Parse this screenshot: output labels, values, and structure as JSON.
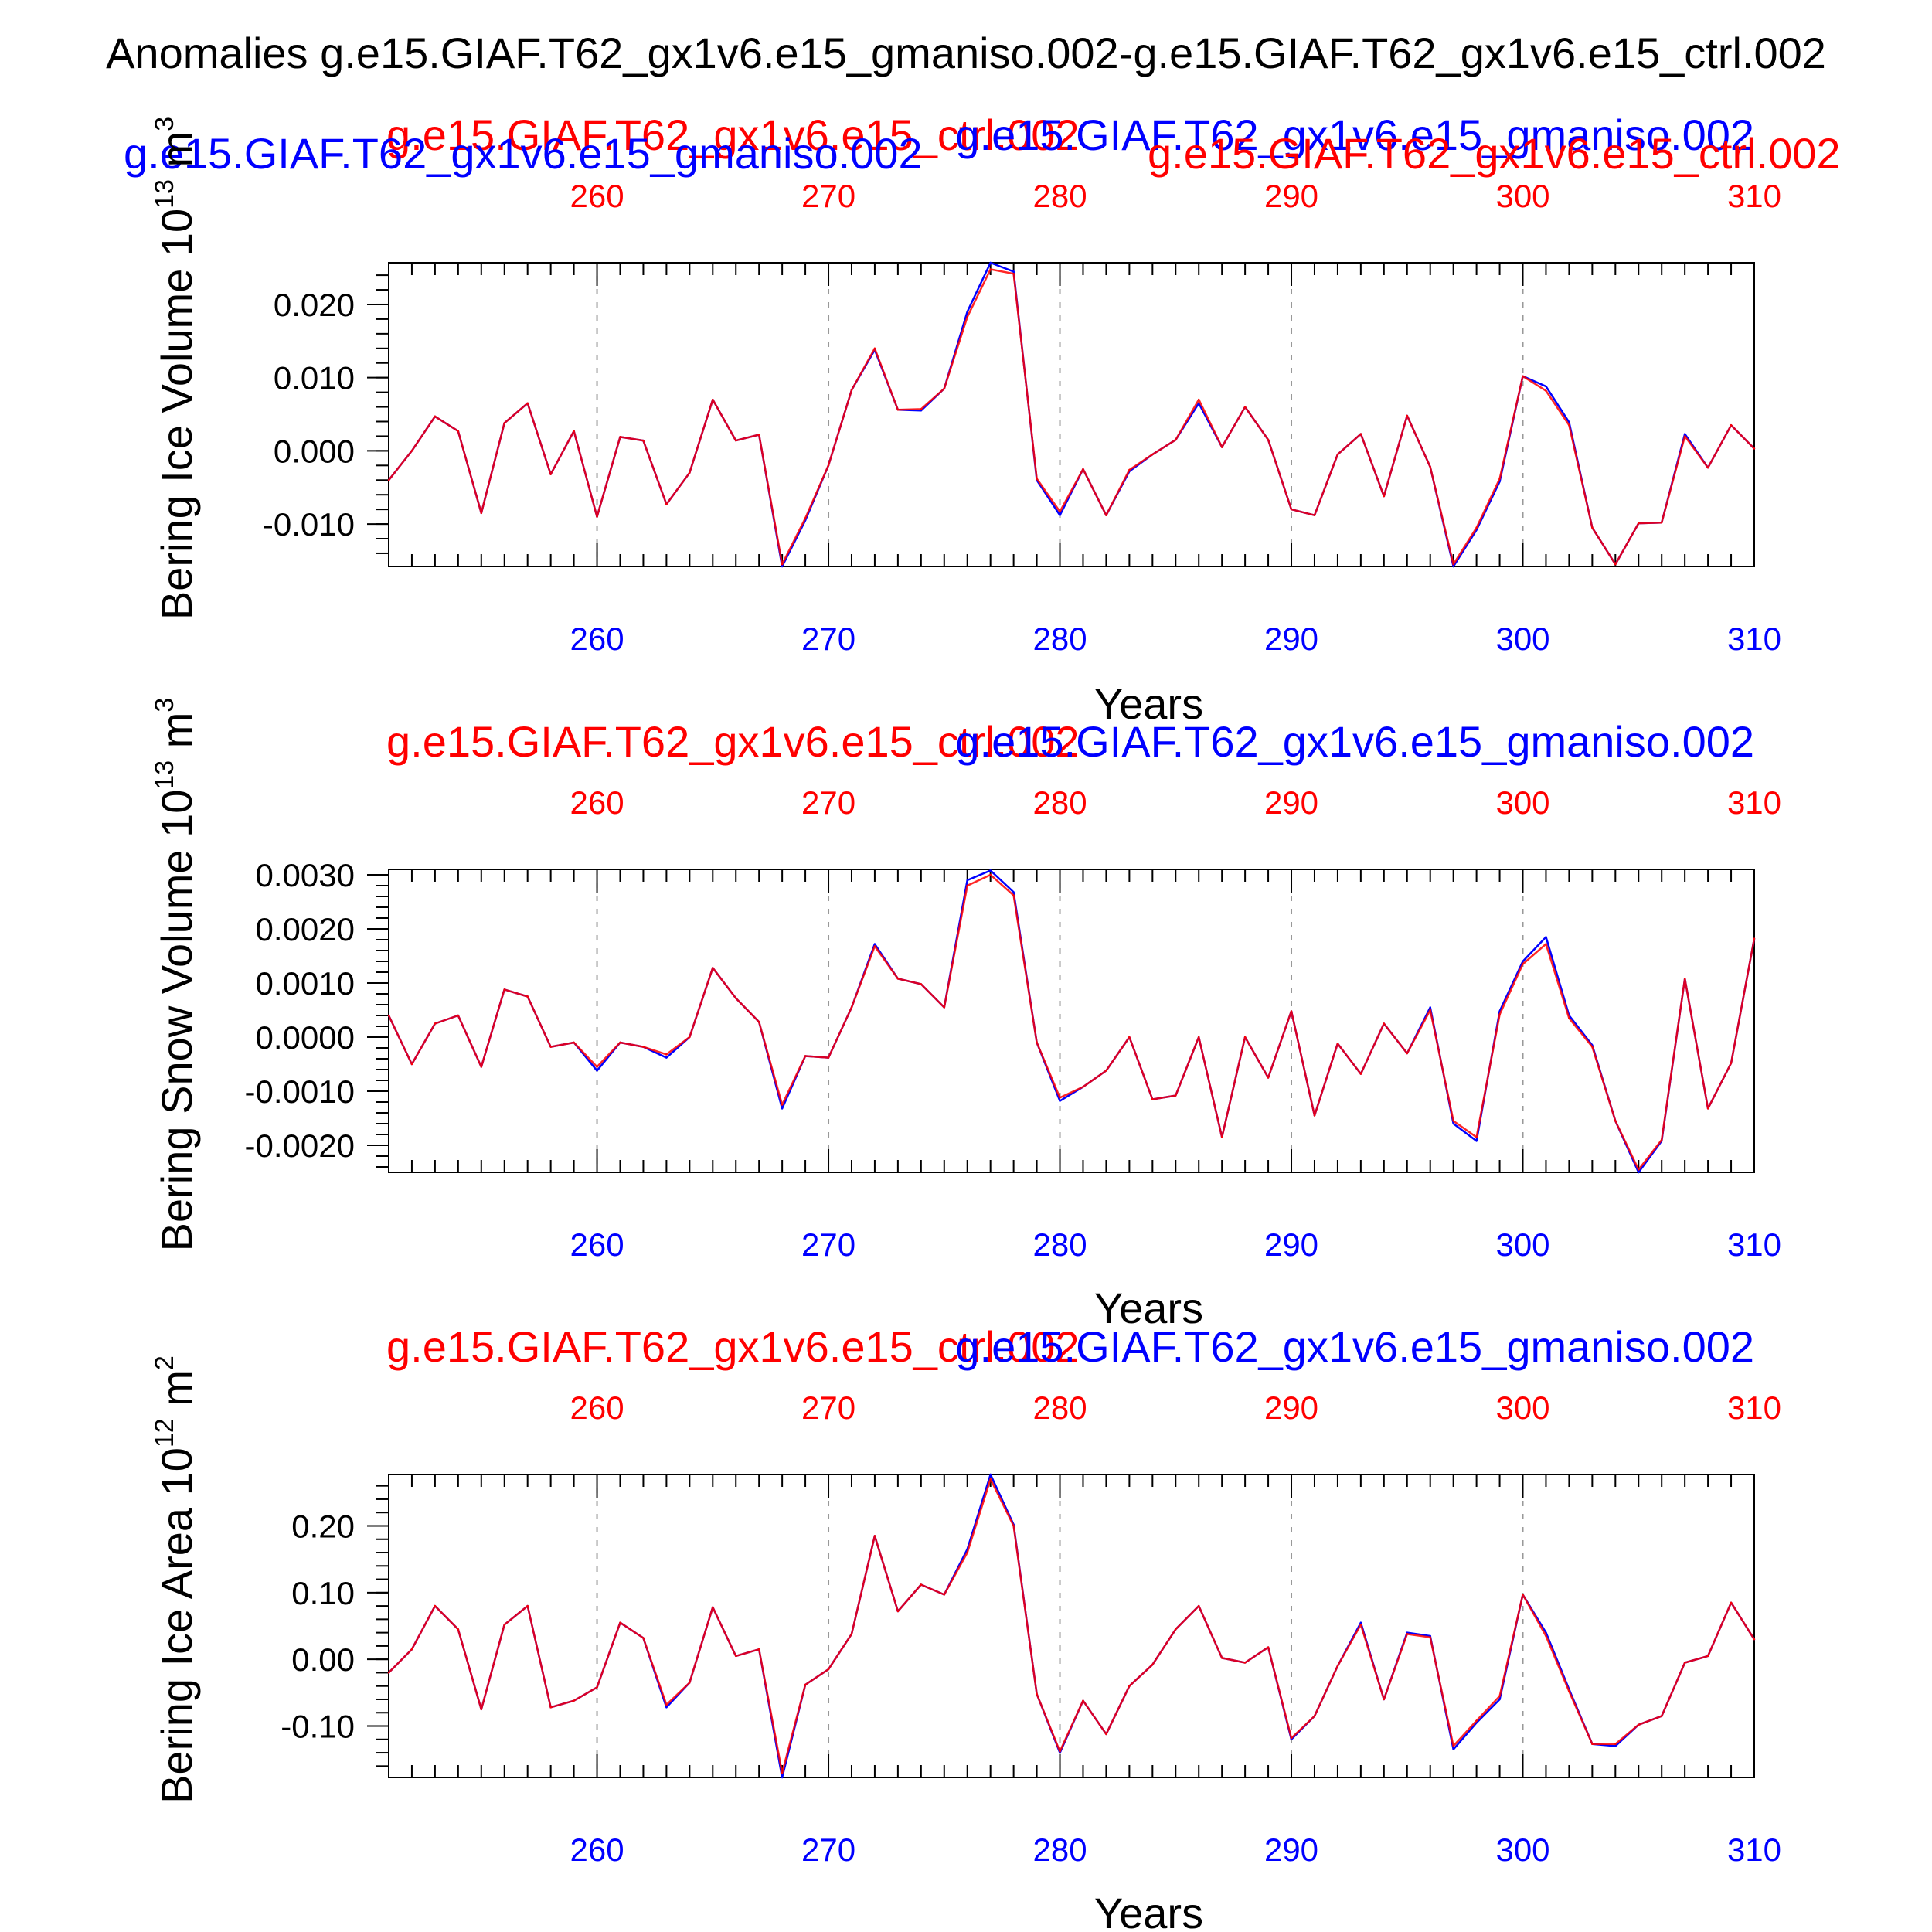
{
  "figure": {
    "main_title": "Anomalies g.e15.GIAF.T62_gx1v6.e15_gmaniso.002-g.e15.GIAF.T62_gx1v6.e15_ctrl.002",
    "colors": {
      "blue": "#0000ff",
      "red": "#ff0000",
      "purple": "#7f007f",
      "black": "#000000",
      "grid": "#999999"
    }
  },
  "chart_data": [
    {
      "type": "line",
      "top_labels": [
        "g.e15.GIAF.T62_gx1v6.e15_ctrl.002",
        "g.e15.GIAF.T62_gx1v6.e15_gmaniso.002"
      ],
      "overlay_labels": [
        "g.e15.GIAF.T62_gx1v6.e15_gmaniso.002",
        "g.e15.GIAF.T62_gx1v6.e15_ctrl.002"
      ],
      "ylabel_main": "Bering Ice Volume 10",
      "ylabel_exp": "13",
      "ylabel_unit": "m",
      "ylabel_unit_exp": "3",
      "xlabel": "Years",
      "xlim": [
        251,
        310
      ],
      "ylim": [
        -0.0158,
        0.0257
      ],
      "xticks": [
        260,
        270,
        280,
        290,
        300,
        310
      ],
      "xtick_labels": [
        "260",
        "270",
        "280",
        "290",
        "300",
        "310"
      ],
      "yticks": [
        -0.01,
        0.0,
        0.01,
        0.02
      ],
      "ytick_labels": [
        "-0.010",
        "0.000",
        "0.010",
        "0.020"
      ],
      "minor_y_step": 0.002,
      "x": [
        251,
        252,
        253,
        254,
        255,
        256,
        257,
        258,
        259,
        260,
        261,
        262,
        263,
        264,
        265,
        266,
        267,
        268,
        269,
        270,
        271,
        272,
        273,
        274,
        275,
        276,
        277,
        278,
        279,
        280,
        281,
        282,
        283,
        284,
        285,
        286,
        287,
        288,
        289,
        290,
        291,
        292,
        293,
        294,
        295,
        296,
        297,
        298,
        299,
        300,
        301,
        302,
        303,
        304,
        305,
        306,
        307,
        308,
        309,
        310
      ],
      "series": [
        {
          "color": "#0000ff",
          "values": [
            -0.004,
            0.0,
            0.0047,
            0.0027,
            -0.0085,
            0.0038,
            0.0065,
            -0.0032,
            0.0027,
            -0.009,
            0.0019,
            0.0014,
            -0.0073,
            -0.003,
            0.007,
            0.0014,
            0.0022,
            -0.0158,
            -0.0095,
            -0.002,
            0.0083,
            0.0138,
            0.0056,
            0.0055,
            0.0085,
            0.019,
            0.0257,
            0.0245,
            -0.004,
            -0.0088,
            -0.0025,
            -0.0088,
            -0.0028,
            -0.0005,
            0.0015,
            0.0065,
            0.0005,
            0.006,
            0.0015,
            -0.008,
            -0.0088,
            -0.0005,
            0.0023,
            -0.0062,
            0.0048,
            -0.0022,
            -0.0158,
            -0.0108,
            -0.0042,
            0.0102,
            0.0088,
            0.0039,
            -0.0105,
            -0.0155,
            -0.0099,
            -0.0098,
            0.0023,
            -0.0023,
            0.0035,
            0.0003
          ]
        },
        {
          "color": "#ff0000",
          "values": [
            -0.004,
            0.0,
            0.0047,
            0.0027,
            -0.0085,
            0.0038,
            0.0065,
            -0.0032,
            0.0027,
            -0.009,
            0.0019,
            0.0014,
            -0.0073,
            -0.003,
            0.007,
            0.0014,
            0.0022,
            -0.0155,
            -0.0092,
            -0.002,
            0.0083,
            0.014,
            0.0056,
            0.0057,
            0.0085,
            0.0183,
            0.0248,
            0.0242,
            -0.0038,
            -0.0083,
            -0.0025,
            -0.0088,
            -0.0026,
            -0.0005,
            0.0015,
            0.007,
            0.0005,
            0.006,
            0.0015,
            -0.008,
            -0.0088,
            -0.0005,
            0.0023,
            -0.0062,
            0.0048,
            -0.0022,
            -0.0155,
            -0.0105,
            -0.0038,
            0.0102,
            0.0082,
            0.0035,
            -0.0105,
            -0.0155,
            -0.0099,
            -0.0098,
            0.002,
            -0.0023,
            0.0035,
            0.0003
          ]
        }
      ]
    },
    {
      "type": "line",
      "top_labels": [
        "g.e15.GIAF.T62_gx1v6.e15_ctrl.002",
        "g.e15.GIAF.T62_gx1v6.e15_gmaniso.002"
      ],
      "overlay_labels": [],
      "ylabel_main": "Bering Snow Volume 10",
      "ylabel_exp": "13",
      "ylabel_unit": "m",
      "ylabel_unit_exp": "3",
      "xlabel": "Years",
      "xlim": [
        251,
        310
      ],
      "ylim": [
        -0.0025,
        0.0031
      ],
      "xticks": [
        260,
        270,
        280,
        290,
        300,
        310
      ],
      "xtick_labels": [
        "260",
        "270",
        "280",
        "290",
        "300",
        "310"
      ],
      "yticks": [
        -0.002,
        -0.001,
        0.0,
        0.001,
        0.002,
        0.003
      ],
      "ytick_labels": [
        "-0.0020",
        "-0.0010",
        "0.0000",
        "0.0010",
        "0.0020",
        "0.0030"
      ],
      "minor_y_step": 0.0002,
      "x": [
        251,
        252,
        253,
        254,
        255,
        256,
        257,
        258,
        259,
        260,
        261,
        262,
        263,
        264,
        265,
        266,
        267,
        268,
        269,
        270,
        271,
        272,
        273,
        274,
        275,
        276,
        277,
        278,
        279,
        280,
        281,
        282,
        283,
        284,
        285,
        286,
        287,
        288,
        289,
        290,
        291,
        292,
        293,
        294,
        295,
        296,
        297,
        298,
        299,
        300,
        301,
        302,
        303,
        304,
        305,
        306,
        307,
        308,
        309,
        310
      ],
      "series": [
        {
          "color": "#0000ff",
          "values": [
            0.0004,
            -0.0005,
            0.00025,
            0.0004,
            -0.00055,
            0.00088,
            0.00075,
            -0.00018,
            -0.0001,
            -0.00062,
            -0.0001,
            -0.00018,
            -0.00038,
            0.0,
            0.00128,
            0.00072,
            0.00028,
            -0.00132,
            -0.00035,
            -0.00038,
            0.00055,
            0.00172,
            0.00108,
            0.00098,
            0.00055,
            0.0029,
            0.00308,
            0.00268,
            -0.0001,
            -0.00118,
            -0.00092,
            -0.00062,
            0.0,
            -0.00115,
            -0.00108,
            0.0,
            -0.00185,
            0.0,
            -0.00075,
            0.00048,
            -0.00145,
            -0.00012,
            -0.00068,
            0.00025,
            -0.0003,
            0.00055,
            -0.0016,
            -0.00192,
            0.00048,
            0.0014,
            0.00185,
            0.0004,
            -0.00015,
            -0.00155,
            -0.0025,
            -0.00192,
            0.00108,
            -0.00132,
            -0.00048,
            0.00182
          ]
        },
        {
          "color": "#ff0000",
          "values": [
            0.0004,
            -0.0005,
            0.00025,
            0.0004,
            -0.00055,
            0.00088,
            0.00075,
            -0.00018,
            -0.0001,
            -0.00055,
            -0.0001,
            -0.00018,
            -0.00032,
            0.0,
            0.00128,
            0.00072,
            0.00028,
            -0.00125,
            -0.00035,
            -0.00038,
            0.00055,
            0.00168,
            0.00108,
            0.00098,
            0.00055,
            0.0028,
            0.003,
            0.00262,
            -0.0001,
            -0.00112,
            -0.00092,
            -0.00062,
            0.0,
            -0.00115,
            -0.00108,
            0.0,
            -0.00185,
            0.0,
            -0.00075,
            0.00048,
            -0.00145,
            -0.00012,
            -0.00068,
            0.00025,
            -0.0003,
            0.0005,
            -0.00155,
            -0.00185,
            0.00042,
            0.00135,
            0.00172,
            0.00035,
            -0.00018,
            -0.00155,
            -0.00245,
            -0.0019,
            0.00108,
            -0.00132,
            -0.00048,
            0.00182
          ]
        }
      ]
    },
    {
      "type": "line",
      "top_labels": [
        "g.e15.GIAF.T62_gx1v6.e15_ctrl.002",
        "g.e15.GIAF.T62_gx1v6.e15_gmaniso.002"
      ],
      "overlay_labels": [],
      "ylabel_main": "Bering Ice Area 10",
      "ylabel_exp": "12",
      "ylabel_unit": "m",
      "ylabel_unit_exp": "2",
      "xlabel": "Years",
      "xlim": [
        251,
        310
      ],
      "ylim": [
        -0.177,
        0.277
      ],
      "xticks": [
        260,
        270,
        280,
        290,
        300,
        310
      ],
      "xtick_labels": [
        "260",
        "270",
        "280",
        "290",
        "300",
        "310"
      ],
      "yticks": [
        -0.1,
        0.0,
        0.1,
        0.2
      ],
      "ytick_labels": [
        "-0.10",
        "0.00",
        "0.10",
        "0.20"
      ],
      "minor_y_step": 0.02,
      "x": [
        251,
        252,
        253,
        254,
        255,
        256,
        257,
        258,
        259,
        260,
        261,
        262,
        263,
        264,
        265,
        266,
        267,
        268,
        269,
        270,
        271,
        272,
        273,
        274,
        275,
        276,
        277,
        278,
        279,
        280,
        281,
        282,
        283,
        284,
        285,
        286,
        287,
        288,
        289,
        290,
        291,
        292,
        293,
        294,
        295,
        296,
        297,
        298,
        299,
        300,
        301,
        302,
        303,
        304,
        305,
        306,
        307,
        308,
        309,
        310
      ],
      "series": [
        {
          "color": "#0000ff",
          "values": [
            -0.02,
            0.015,
            0.08,
            0.045,
            -0.075,
            0.052,
            0.08,
            -0.072,
            -0.062,
            -0.042,
            0.055,
            0.032,
            -0.072,
            -0.035,
            0.078,
            0.005,
            0.015,
            -0.177,
            -0.038,
            -0.015,
            0.038,
            0.185,
            0.072,
            0.112,
            0.097,
            0.165,
            0.277,
            0.202,
            -0.052,
            -0.14,
            -0.062,
            -0.112,
            -0.04,
            -0.008,
            0.045,
            0.08,
            0.002,
            -0.005,
            0.018,
            -0.12,
            -0.085,
            -0.01,
            0.055,
            -0.06,
            0.04,
            0.035,
            -0.135,
            -0.095,
            -0.06,
            0.097,
            0.04,
            -0.045,
            -0.127,
            -0.13,
            -0.098,
            -0.085,
            -0.005,
            0.005,
            0.085,
            0.03
          ]
        },
        {
          "color": "#ff0000",
          "values": [
            -0.02,
            0.015,
            0.08,
            0.045,
            -0.075,
            0.052,
            0.08,
            -0.072,
            -0.062,
            -0.042,
            0.055,
            0.032,
            -0.068,
            -0.035,
            0.078,
            0.005,
            0.015,
            -0.17,
            -0.038,
            -0.015,
            0.038,
            0.185,
            0.072,
            0.112,
            0.097,
            0.16,
            0.27,
            0.2,
            -0.052,
            -0.138,
            -0.062,
            -0.112,
            -0.04,
            -0.008,
            0.045,
            0.08,
            0.002,
            -0.005,
            0.018,
            -0.118,
            -0.085,
            -0.01,
            0.052,
            -0.06,
            0.038,
            0.033,
            -0.13,
            -0.092,
            -0.055,
            0.097,
            0.035,
            -0.048,
            -0.127,
            -0.127,
            -0.098,
            -0.085,
            -0.005,
            0.005,
            0.085,
            0.03
          ]
        }
      ]
    }
  ]
}
